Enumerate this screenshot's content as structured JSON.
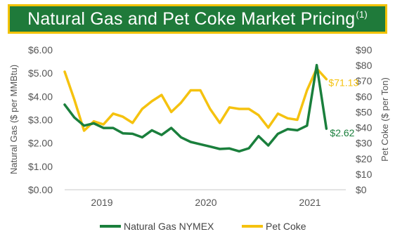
{
  "banner": {
    "title": "Natural Gas and Pet Coke Market Pricing",
    "footnote": "(1)"
  },
  "colors": {
    "banner_bg": "#1f7a3a",
    "banner_border": "#f2c200",
    "natural_gas": "#1a7f3c",
    "pet_coke": "#f5c20f"
  },
  "chart_data": {
    "type": "line",
    "x_ticks": [
      "2019",
      "2020",
      "2021"
    ],
    "y_left": {
      "label": "Natural Gas ($ per MMBtu)",
      "range": [
        0,
        6
      ],
      "ticks": [
        "$0.00",
        "$1.00",
        "$2.00",
        "$3.00",
        "$4.00",
        "$5.00",
        "$6.00"
      ]
    },
    "y_right": {
      "label": "Pet Coke ($ per Ton)",
      "range": [
        0,
        90
      ],
      "ticks": [
        "$0",
        "$10",
        "$20",
        "$30",
        "$40",
        "$50",
        "$60",
        "$70",
        "$80",
        "$90"
      ]
    },
    "legend_position": "bottom",
    "grid": false,
    "series": [
      {
        "name": "Natural Gas NYMEX",
        "axis": "left",
        "end_label": "$2.62",
        "points": [
          [
            "2018-09",
            3.65
          ],
          [
            "2018-10",
            3.1
          ],
          [
            "2018-11",
            2.75
          ],
          [
            "2018-12",
            2.85
          ],
          [
            "2019-01",
            2.65
          ],
          [
            "2019-02",
            2.65
          ],
          [
            "2019-03",
            2.42
          ],
          [
            "2019-04",
            2.4
          ],
          [
            "2019-05",
            2.25
          ],
          [
            "2019-06",
            2.55
          ],
          [
            "2019-07",
            2.35
          ],
          [
            "2019-08",
            2.65
          ],
          [
            "2019-09",
            2.25
          ],
          [
            "2019-10",
            2.05
          ],
          [
            "2019-11",
            1.95
          ],
          [
            "2019-12",
            1.85
          ],
          [
            "2020-01",
            1.75
          ],
          [
            "2020-02",
            1.77
          ],
          [
            "2020-03",
            1.65
          ],
          [
            "2020-04",
            1.78
          ],
          [
            "2020-05",
            2.3
          ],
          [
            "2020-06",
            1.9
          ],
          [
            "2020-07",
            2.4
          ],
          [
            "2020-08",
            2.6
          ],
          [
            "2020-09",
            2.55
          ],
          [
            "2020-10",
            2.75
          ],
          [
            "2020-11",
            5.35
          ],
          [
            "2020-12",
            2.62
          ]
        ]
      },
      {
        "name": "Pet Coke",
        "axis": "right",
        "end_label": "$71.13",
        "points": [
          [
            "2018-09",
            76
          ],
          [
            "2018-10",
            58
          ],
          [
            "2018-11",
            38
          ],
          [
            "2018-12",
            44
          ],
          [
            "2019-01",
            42
          ],
          [
            "2019-02",
            49
          ],
          [
            "2019-03",
            47
          ],
          [
            "2019-04",
            43
          ],
          [
            "2019-05",
            52
          ],
          [
            "2019-06",
            57
          ],
          [
            "2019-07",
            61
          ],
          [
            "2019-08",
            50
          ],
          [
            "2019-09",
            56
          ],
          [
            "2019-10",
            64
          ],
          [
            "2019-11",
            64
          ],
          [
            "2019-12",
            52
          ],
          [
            "2020-01",
            43
          ],
          [
            "2020-02",
            53
          ],
          [
            "2020-03",
            52
          ],
          [
            "2020-04",
            52
          ],
          [
            "2020-05",
            48
          ],
          [
            "2020-06",
            40
          ],
          [
            "2020-07",
            49
          ],
          [
            "2020-08",
            46
          ],
          [
            "2020-09",
            45
          ],
          [
            "2020-10",
            64
          ],
          [
            "2020-11",
            78
          ],
          [
            "2020-12",
            71.13
          ]
        ]
      }
    ]
  }
}
